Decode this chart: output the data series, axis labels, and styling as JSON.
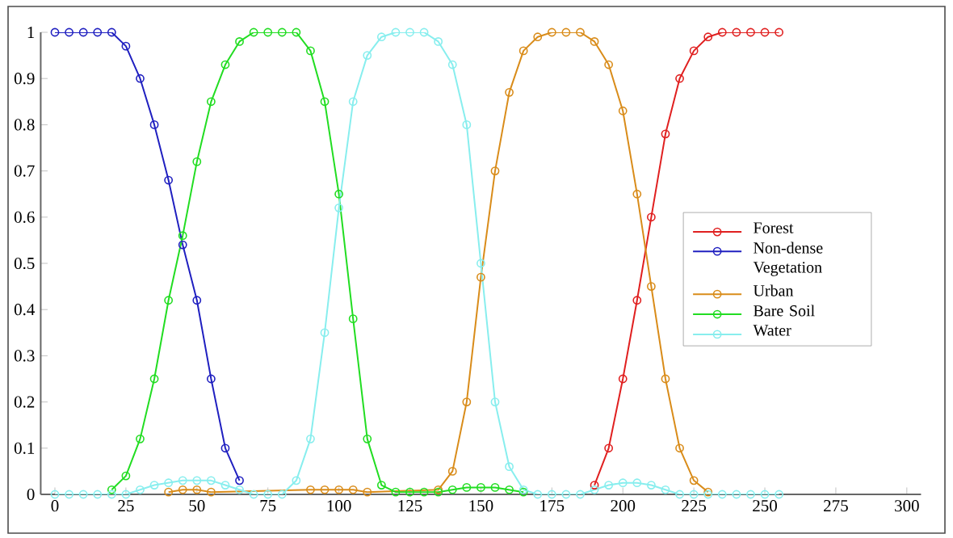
{
  "chart_data": {
    "type": "line",
    "marker": "circle",
    "line_style": "solid",
    "legend": "right",
    "xlim": [
      -5,
      305
    ],
    "ylim": [
      0,
      1
    ],
    "xticks": [
      0,
      25,
      50,
      75,
      100,
      125,
      150,
      175,
      200,
      225,
      250,
      275,
      300
    ],
    "yticks": [
      0,
      0.1,
      0.2,
      0.3,
      0.4,
      0.5,
      0.6,
      0.7,
      0.8,
      0.9,
      1
    ],
    "x": [
      0,
      5,
      10,
      15,
      20,
      25,
      30,
      35,
      40,
      45,
      50,
      55,
      60,
      65,
      70,
      75,
      80,
      85,
      90,
      95,
      100,
      105,
      110,
      115,
      120,
      125,
      130,
      135,
      140,
      145,
      150,
      155,
      160,
      165,
      170,
      175,
      180,
      185,
      190,
      195,
      200,
      205,
      210,
      215,
      220,
      225,
      230,
      235,
      240,
      245,
      250,
      255
    ],
    "series": [
      {
        "name": "Forest",
        "color": "#e02020",
        "values": [
          null,
          null,
          null,
          null,
          null,
          null,
          null,
          null,
          null,
          null,
          null,
          null,
          null,
          null,
          null,
          null,
          null,
          null,
          null,
          null,
          null,
          null,
          null,
          null,
          null,
          null,
          null,
          null,
          null,
          null,
          null,
          null,
          null,
          null,
          null,
          null,
          null,
          null,
          0.02,
          0.1,
          0.25,
          0.42,
          0.6,
          0.78,
          0.9,
          0.96,
          0.99,
          1,
          1,
          1,
          1,
          1
        ]
      },
      {
        "name": "Non-dense Vegetation",
        "color": "#2020c0",
        "values": [
          1,
          1,
          1,
          1,
          1,
          0.97,
          0.9,
          0.8,
          0.68,
          0.54,
          0.42,
          0.25,
          0.1,
          0.03,
          null,
          null,
          null,
          null,
          null,
          null,
          null,
          null,
          null,
          null,
          null,
          null,
          null,
          null,
          null,
          null,
          null,
          null,
          null,
          null,
          null,
          null,
          null,
          null,
          null,
          null,
          null,
          null,
          null,
          null,
          null,
          null,
          null,
          null,
          null,
          null,
          null,
          null
        ]
      },
      {
        "name": "Urban",
        "color": "#d98c1a",
        "values": [
          null,
          null,
          null,
          null,
          null,
          null,
          null,
          null,
          0.005,
          0.01,
          0.01,
          0.005,
          null,
          null,
          null,
          null,
          null,
          null,
          0.01,
          0.01,
          0.01,
          0.01,
          0.005,
          null,
          null,
          null,
          null,
          0.01,
          0.05,
          0.2,
          0.47,
          0.7,
          0.87,
          0.96,
          0.99,
          1,
          1,
          1,
          0.98,
          0.93,
          0.83,
          0.65,
          0.45,
          0.25,
          0.1,
          0.03,
          0.005,
          null,
          null,
          null,
          null,
          null
        ]
      },
      {
        "name": "Bare Soil",
        "color": "#22dd22",
        "values": [
          null,
          null,
          null,
          null,
          0.01,
          0.04,
          0.12,
          0.25,
          0.42,
          0.56,
          0.72,
          0.85,
          0.93,
          0.98,
          1,
          1,
          1,
          1,
          0.96,
          0.85,
          0.65,
          0.38,
          0.12,
          0.02,
          0.005,
          0.005,
          0.005,
          0.005,
          0.01,
          0.015,
          0.015,
          0.015,
          0.01,
          0.005,
          null,
          null,
          null,
          null,
          null,
          null,
          null,
          null,
          null,
          null,
          null,
          null,
          null,
          null,
          null,
          null,
          null,
          null
        ]
      },
      {
        "name": "Water",
        "color": "#88eeee",
        "values": [
          0,
          0,
          0,
          0,
          0,
          0,
          0.01,
          0.02,
          0.025,
          0.03,
          0.03,
          0.03,
          0.02,
          0.01,
          0,
          0,
          0,
          0.03,
          0.12,
          0.35,
          0.62,
          0.85,
          0.95,
          0.99,
          1,
          1,
          1,
          0.98,
          0.93,
          0.8,
          0.5,
          0.2,
          0.06,
          0.01,
          0,
          0,
          0,
          0,
          0.01,
          0.02,
          0.025,
          0.025,
          0.02,
          0.01,
          0,
          0,
          0,
          0,
          0,
          0,
          0,
          0
        ]
      }
    ]
  }
}
